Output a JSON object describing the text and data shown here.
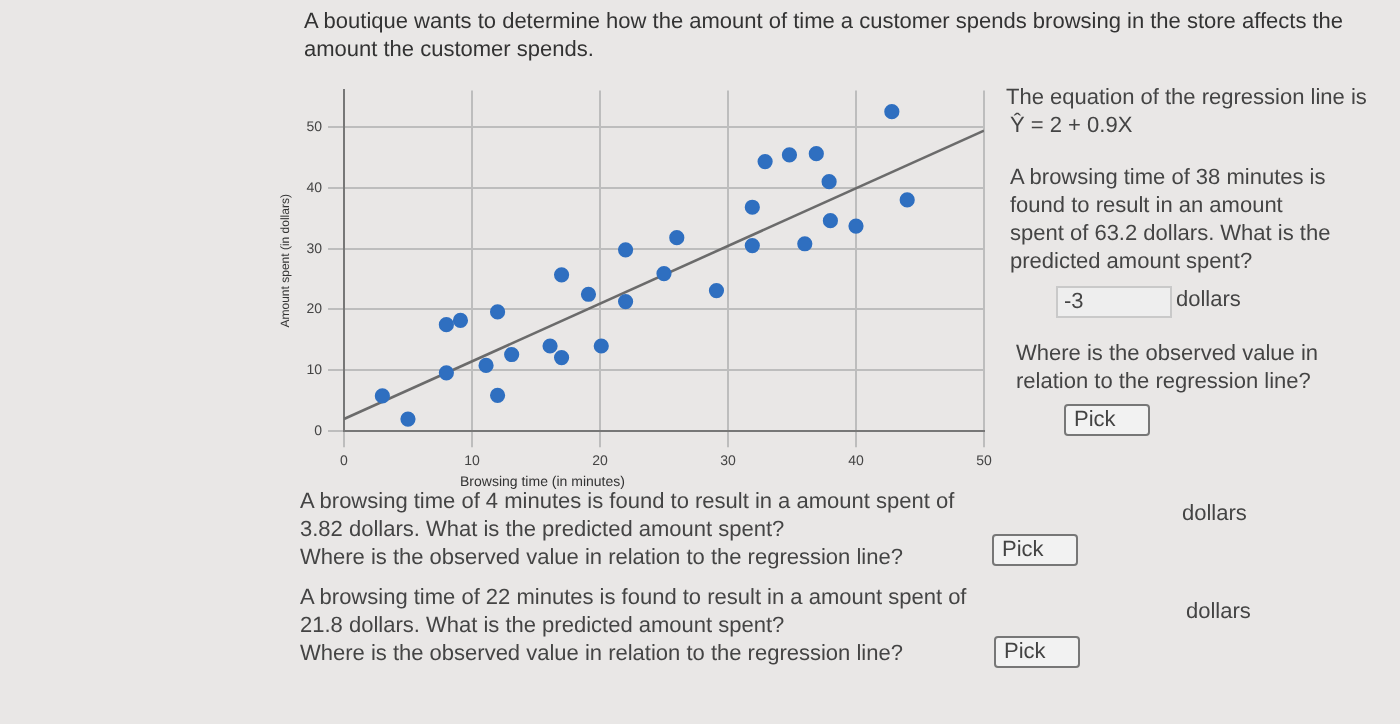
{
  "chart_data": {
    "type": "scatter",
    "title": "A boutique wants to determine how the amount of time a customer spends browsing in the store affects the amount the customer spends.",
    "xlabel": "Browsing time (in minutes)",
    "ylabel": "Amount spent (in dollars)",
    "xlim": [
      0,
      50
    ],
    "ylim": [
      0,
      56
    ],
    "xticks": [
      0,
      10,
      20,
      30,
      40,
      50
    ],
    "yticks": [
      0,
      10,
      20,
      30,
      40,
      50
    ],
    "grid": true,
    "legend": false,
    "series": [
      {
        "marker": "circle",
        "color": "#2f6fc0",
        "x": [
          3.0,
          5.0,
          8.0,
          8.0,
          9.1,
          11.1,
          12.0,
          12.0,
          13.1,
          16.1,
          17.0,
          17.0,
          19.1,
          20.1,
          22.0,
          22.0,
          25.0,
          26.0,
          29.1,
          31.9,
          31.9,
          32.9,
          34.8,
          36.0,
          36.9,
          37.9,
          38.0,
          40.0,
          42.8,
          44.0
        ],
        "values": [
          5.8,
          2.0,
          17.5,
          9.6,
          18.2,
          10.8,
          19.6,
          5.9,
          12.6,
          14.0,
          25.7,
          12.1,
          22.5,
          14.0,
          29.8,
          21.3,
          25.9,
          31.8,
          23.1,
          36.8,
          30.5,
          44.3,
          45.4,
          30.8,
          45.6,
          41.0,
          34.6,
          33.7,
          52.5,
          38.0
        ]
      },
      {
        "type": "line",
        "marker": "none",
        "color": "#6b6b6b",
        "line_style": "solid",
        "x": [
          0,
          50
        ],
        "values": [
          2.0,
          49.4
        ]
      }
    ],
    "annotations": [
      "The equation of the regression line is",
      "Ŷ = 2 + 0.9X",
      "A browsing time of 38 minutes is found to result in an amount spent of 63.2 dollars. What is the predicted amount spent?",
      "-3",
      "dollars",
      "Where is the observed value in relation to the regression line?",
      "Pick",
      "A browsing time of 4 minutes is found to result in a amount spent of 3.82 dollars. What is the predicted amount spent?",
      "Where is the observed value in relation to the regression line?",
      "dollars",
      "Pick",
      "A browsing time of 22 minutes is found to result in a amount spent of 21.8 dollars. What is the predicted amount spent?",
      "Where is the observed value in relation to the regression line?",
      "dollars",
      "Pick"
    ]
  }
}
